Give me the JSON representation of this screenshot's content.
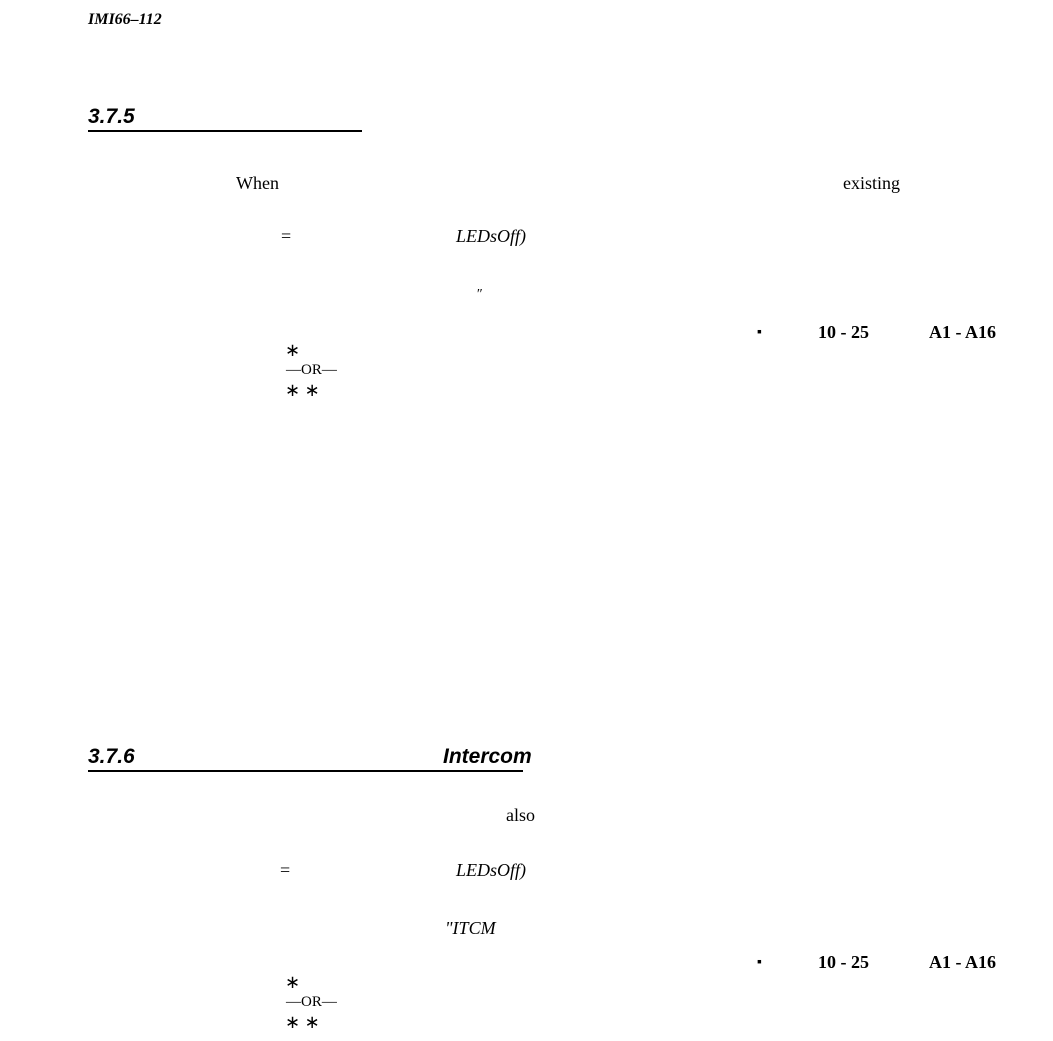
{
  "header": {
    "doc_id": "IMI66–112"
  },
  "sections": [
    {
      "number": "3.7.5",
      "line1": [
        "When",
        "existing"
      ],
      "line2": [
        "=",
        "LEDs",
        "Off)"
      ],
      "line3": [
        "″"
      ],
      "ranges": [
        "▪",
        "10 - 25",
        "A1 - A16"
      ],
      "options": [
        "∗",
        "—OR—",
        "∗ ∗"
      ]
    },
    {
      "number": "3.7.6",
      "title": "Intercom",
      "line1": [
        "also"
      ],
      "line2": [
        "=",
        "LEDs",
        "Off)"
      ],
      "line3": [
        "\"ITCM"
      ],
      "ranges": [
        "▪",
        "10 - 25",
        "A1 - A16"
      ],
      "options": [
        "∗",
        "—OR—",
        "∗ ∗"
      ]
    }
  ]
}
